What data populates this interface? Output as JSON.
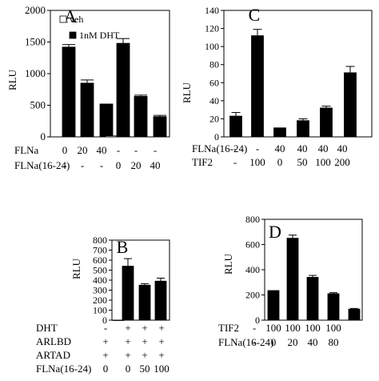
{
  "chart_data": [
    {
      "panel_letter": "A",
      "type": "bar",
      "ylabel": "RLU",
      "ylim": [
        0,
        2000
      ],
      "yticks": [
        0,
        500,
        1000,
        1500,
        2000
      ],
      "legend": {
        "placement": "top-left",
        "entries": [
          "veh",
          "1nM DHT"
        ]
      },
      "series_colors": {
        "veh": "#ffffff",
        "1nM DHT": "#000000"
      },
      "groups": [
        {
          "veh": 0,
          "dht": 1420,
          "err": 40
        },
        {
          "veh": 0,
          "dht": 850,
          "err": 50
        },
        {
          "veh": 0,
          "dht": 520,
          "err": 0
        },
        {
          "veh": 15,
          "dht": 1480,
          "err": 75
        },
        {
          "veh": 0,
          "dht": 640,
          "err": 20
        },
        {
          "veh": 0,
          "dht": 320,
          "err": 20
        }
      ],
      "conditions": [
        {
          "label": "FLNa",
          "values": [
            "0",
            "20",
            "40",
            "-",
            "-",
            "-"
          ]
        },
        {
          "label": "FLNa(16-24)",
          "values": [
            "-",
            "-",
            "-",
            "0",
            "20",
            "40"
          ]
        }
      ]
    },
    {
      "panel_letter": "C",
      "type": "bar",
      "ylabel": "RLU",
      "ylim": [
        0,
        140
      ],
      "yticks": [
        0,
        20,
        40,
        60,
        80,
        100,
        120,
        140
      ],
      "values": [
        23,
        112,
        10,
        18,
        32,
        71
      ],
      "errors": [
        4,
        7,
        0,
        2,
        2,
        7
      ],
      "conditions": [
        {
          "label": "FLNa(16-24)",
          "values": [
            "-",
            "-",
            "40",
            "40",
            "40",
            "40"
          ]
        },
        {
          "label": "TIF2",
          "values": [
            "-",
            "100",
            "0",
            "50",
            "100",
            "200"
          ]
        }
      ]
    },
    {
      "panel_letter": "B",
      "type": "bar",
      "ylabel": "RLU",
      "ylim": [
        0,
        800
      ],
      "yticks": [
        0,
        100,
        200,
        300,
        400,
        500,
        600,
        700,
        800
      ],
      "values": [
        0,
        540,
        350,
        390
      ],
      "errors": [
        0,
        75,
        15,
        30
      ],
      "conditions": [
        {
          "label": "DHT",
          "values": [
            "-",
            "+",
            "+",
            "+"
          ]
        },
        {
          "label": "ARLBD",
          "values": [
            "+",
            "+",
            "+",
            "+"
          ]
        },
        {
          "label": "ARTAD",
          "values": [
            "+",
            "+",
            "+",
            "+"
          ]
        },
        {
          "label": "FLNa(16-24)",
          "values": [
            "0",
            "0",
            "50",
            "100"
          ]
        }
      ]
    },
    {
      "panel_letter": "D",
      "type": "bar",
      "ylabel": "RLU",
      "ylim": [
        0,
        800
      ],
      "yticks": [
        0,
        200,
        400,
        600,
        800
      ],
      "values": [
        235,
        650,
        340,
        210,
        88
      ],
      "errors": [
        0,
        25,
        15,
        8,
        5
      ],
      "conditions": [
        {
          "label": "TIF2",
          "values": [
            "-",
            "100",
            "100",
            "100",
            "100"
          ]
        },
        {
          "label": "FLNa(16-24)",
          "values": [
            "-",
            "0",
            "20",
            "40",
            "80"
          ]
        }
      ]
    }
  ]
}
